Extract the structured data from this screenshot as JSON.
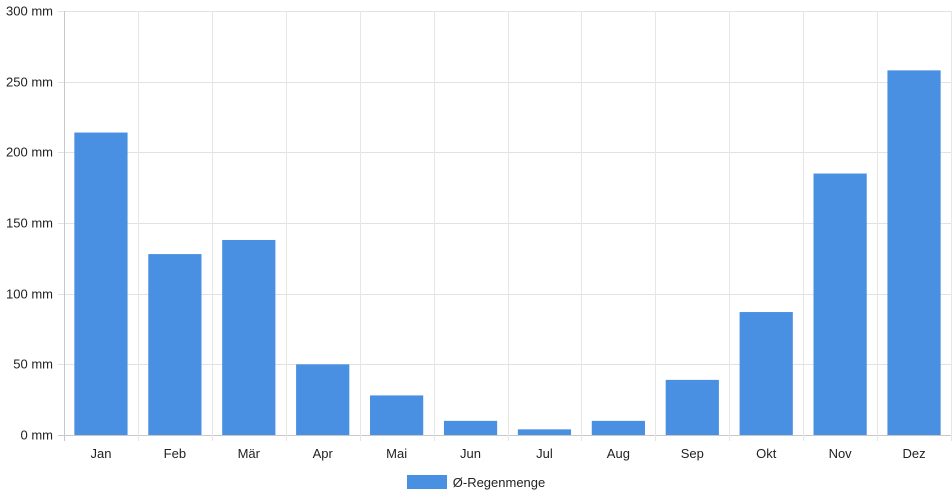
{
  "chart_data": {
    "type": "bar",
    "categories": [
      "Jan",
      "Feb",
      "Mär",
      "Apr",
      "Mai",
      "Jun",
      "Jul",
      "Aug",
      "Sep",
      "Okt",
      "Nov",
      "Dez"
    ],
    "series": [
      {
        "name": "Ø-Regenmenge",
        "color": "#4a90e2",
        "values": [
          214,
          128,
          138,
          50,
          28,
          10,
          4,
          10,
          39,
          87,
          185,
          258
        ]
      }
    ],
    "y_unit_suffix": " mm",
    "ylim": [
      0,
      300
    ],
    "yticks": [
      0,
      50,
      100,
      150,
      200,
      250,
      300
    ],
    "ytick_labels": [
      "0 mm",
      "50 mm",
      "100 mm",
      "150 mm",
      "200 mm",
      "250 mm",
      "300 mm"
    ],
    "grid": true,
    "legend_position": "bottom-center"
  }
}
